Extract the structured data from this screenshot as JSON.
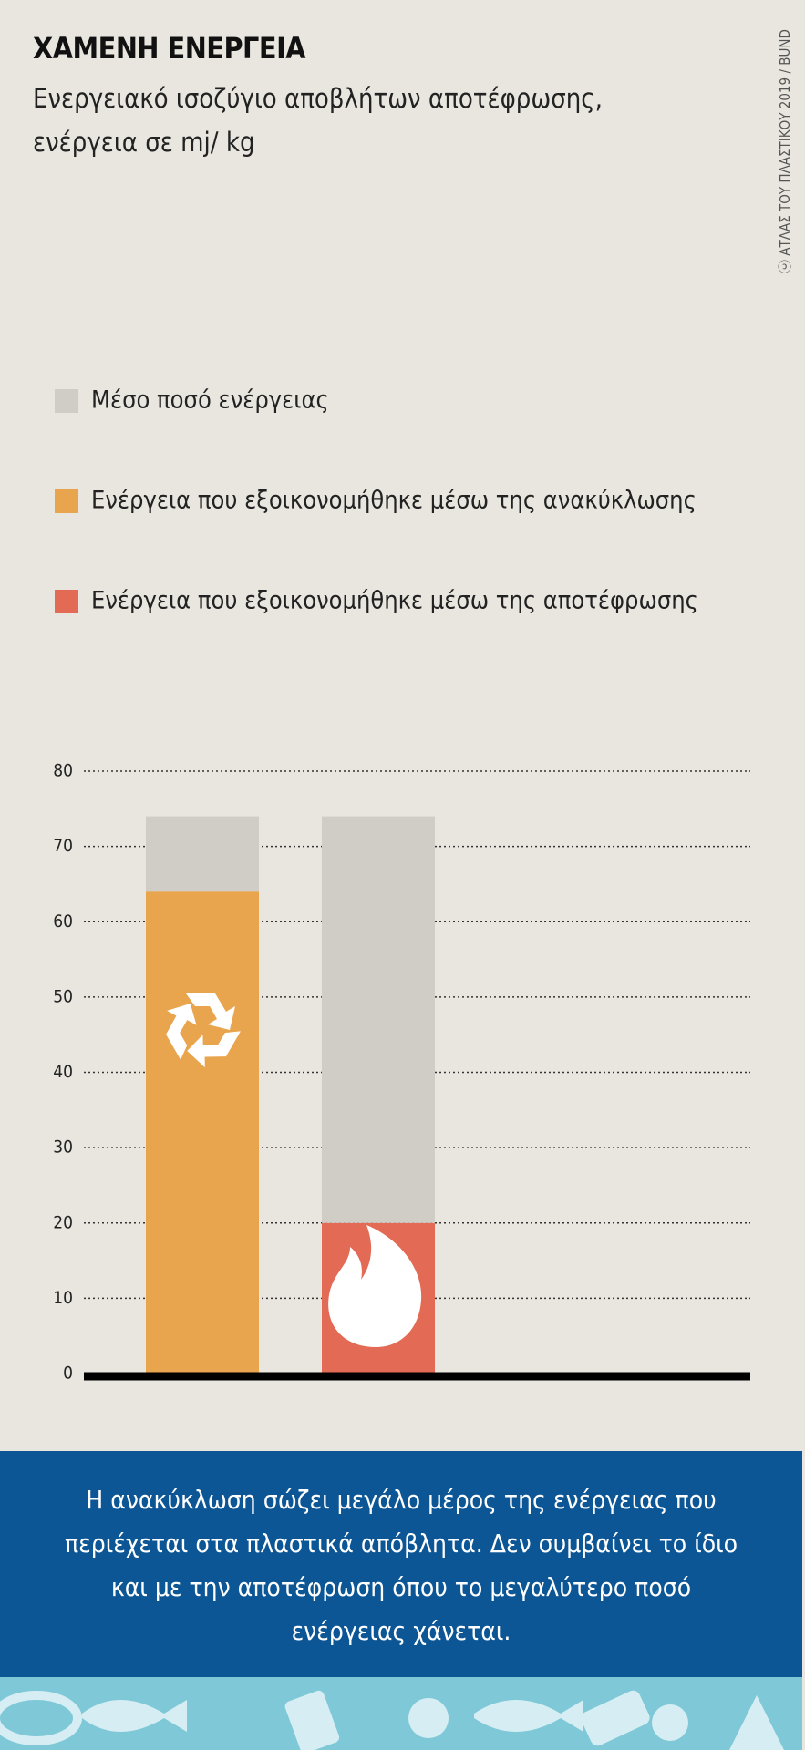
{
  "chart_data": {
    "type": "bar",
    "stacked": true,
    "title": "ΧΑΜΕΝΗ ΕΝΕΡΓΕΙΑ",
    "subtitle": "Ενεργειακό ισοζύγιο αποβλήτων αποτέφρωσης, ενέργεια σε mj/ kg",
    "source": "ΑΤΛΑΣ ΤΟΥ ΠΛΑΣΤΙΚΟΥ 2019 / BUND",
    "categories": [
      null,
      null
    ],
    "series": [
      {
        "name": "Μέσο ποσό ενέργειας",
        "color": "#cfcdc6",
        "values": [
          10,
          54
        ]
      },
      {
        "name": "Ενέργεια που εξοικονομήθηκε μέσω της ανακύκλωσης",
        "color": "#e9a44e",
        "values": [
          64,
          null
        ]
      },
      {
        "name": "Ενέργεια που εξοικονομήθηκε μέσω της αποτέφρωσης",
        "color": "#e36b55",
        "values": [
          null,
          20
        ]
      }
    ],
    "ylim": [
      0,
      80
    ],
    "yticks": [
      0,
      10,
      20,
      30,
      40,
      50,
      60,
      70,
      80
    ],
    "grid": true
  },
  "footer_text": "Η ανακύκλωση σώζει μεγάλο μέρος της ενέργειας που περιέχεται στα πλαστικά απόβλητα. Δεν συμβαίνει το ίδιο και με την αποτέφρωση όπου το μεγαλύτερο ποσό ενέργειας χάνεται."
}
